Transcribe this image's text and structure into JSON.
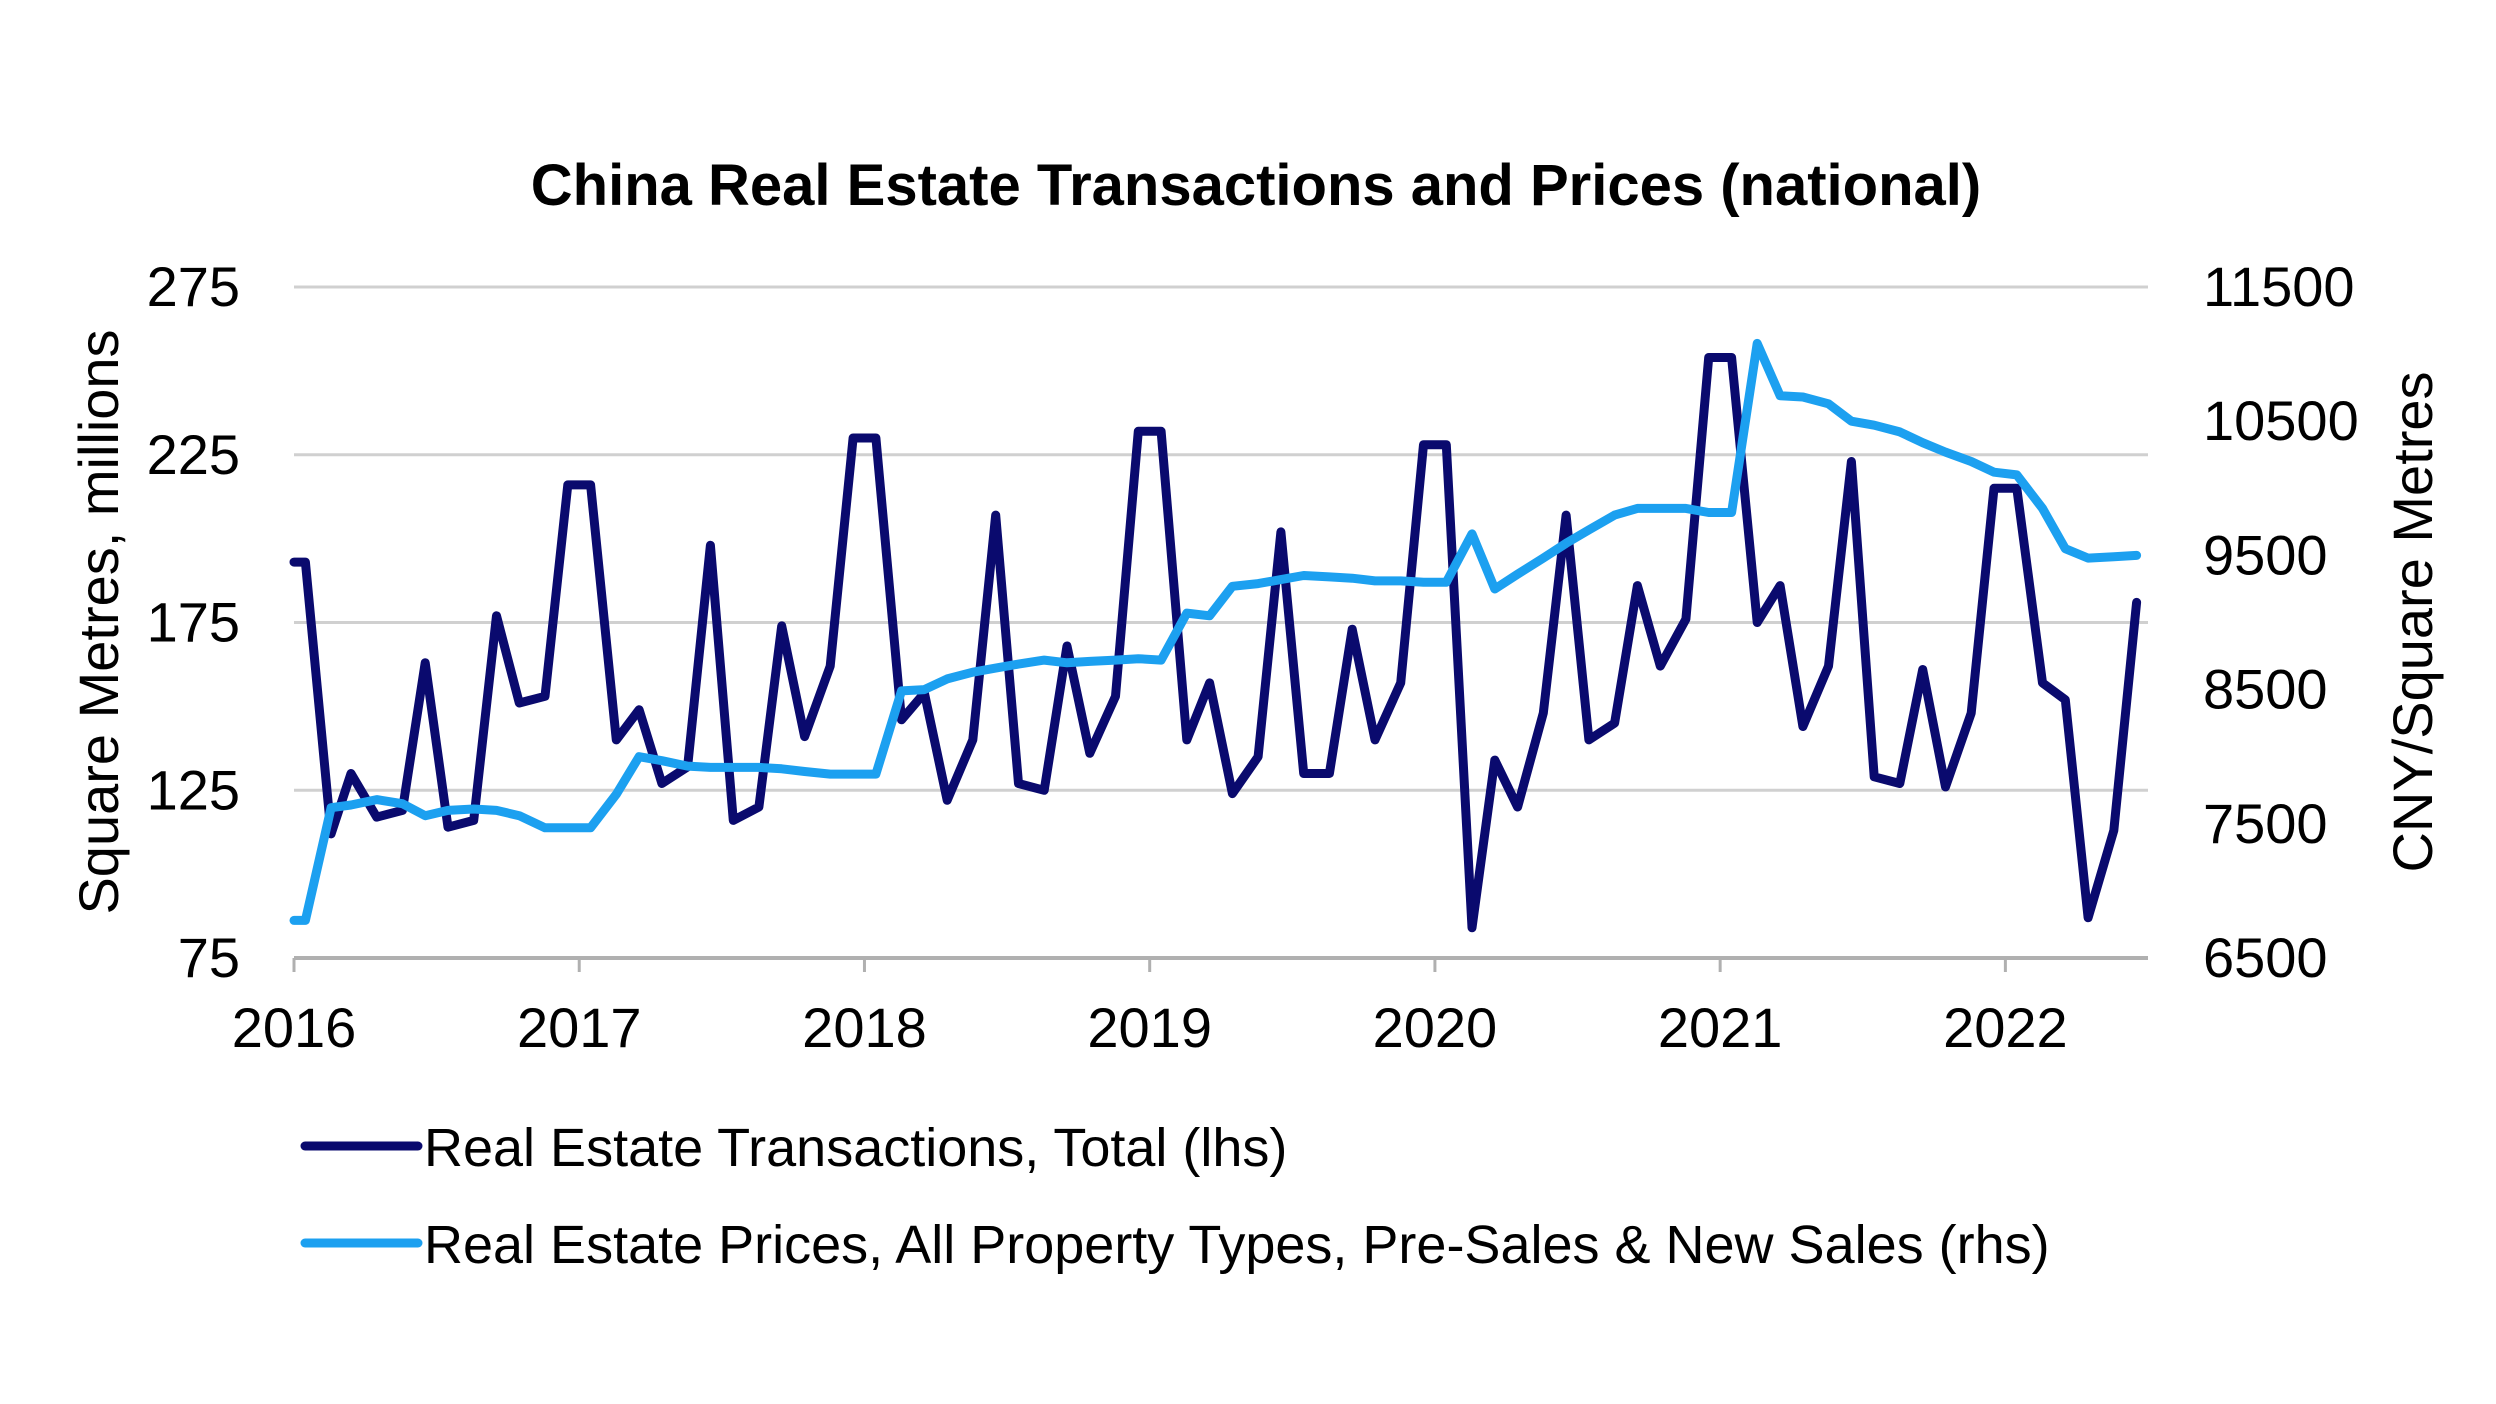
{
  "chart_data": {
    "type": "line",
    "title": "China Real Estate Transactions and Prices (national)",
    "left_axis": {
      "label": "Square Metres, millions",
      "ylim": [
        75,
        275
      ],
      "ticks": [
        "75",
        "125",
        "175",
        "225",
        "275"
      ]
    },
    "right_axis": {
      "label": "CNY/Square Metres",
      "ylim": [
        6500,
        11500
      ],
      "ticks": [
        "6500",
        "7500",
        "8500",
        "9500",
        "10500",
        "11500"
      ]
    },
    "x_axis": {
      "ticks": [
        "2016",
        "2017",
        "2018",
        "2019",
        "2020",
        "2021",
        "2022"
      ],
      "xlim": [
        2016.0,
        2022.5
      ]
    },
    "colors": {
      "transactions": "#0a0a6e",
      "prices": "#1ca0f0",
      "grid": "#d0d0d0",
      "axis": "#b0b0b0"
    },
    "series": [
      {
        "name": "Real Estate Transactions, Total (lhs)",
        "axis": "left",
        "color": "#0a0a6e",
        "x": [
          2016.0,
          2016.04,
          2016.13,
          2016.2,
          2016.29,
          2016.38,
          2016.46,
          2016.54,
          2016.63,
          2016.71,
          2016.79,
          2016.88,
          2016.96,
          2017.04,
          2017.13,
          2017.21,
          2017.29,
          2017.38,
          2017.46,
          2017.54,
          2017.63,
          2017.71,
          2017.79,
          2017.88,
          2017.96,
          2018.04,
          2018.13,
          2018.21,
          2018.29,
          2018.38,
          2018.46,
          2018.54,
          2018.63,
          2018.71,
          2018.79,
          2018.88,
          2018.96,
          2019.04,
          2019.13,
          2019.21,
          2019.29,
          2019.38,
          2019.46,
          2019.54,
          2019.63,
          2019.71,
          2019.79,
          2019.88,
          2019.96,
          2020.04,
          2020.13,
          2020.21,
          2020.29,
          2020.38,
          2020.46,
          2020.54,
          2020.63,
          2020.71,
          2020.79,
          2020.88,
          2020.96,
          2021.04,
          2021.13,
          2021.21,
          2021.29,
          2021.38,
          2021.46,
          2021.54,
          2021.63,
          2021.71,
          2021.79,
          2021.88,
          2021.96,
          2022.04,
          2022.13,
          2022.21,
          2022.29,
          2022.38,
          2022.46
        ],
        "values": [
          193,
          193,
          112,
          130,
          117,
          119,
          163,
          114,
          116,
          177,
          151,
          153,
          216,
          216,
          140,
          149,
          127,
          132,
          198,
          116,
          120,
          174,
          141,
          162,
          230,
          230,
          146,
          154,
          122,
          140,
          207,
          127,
          125,
          168,
          136,
          153,
          232,
          232,
          140,
          157,
          124,
          135,
          202,
          130,
          130,
          173,
          140,
          157,
          228,
          228,
          84,
          134,
          120,
          148,
          207,
          140,
          145,
          186,
          162,
          176,
          254,
          254,
          175,
          186,
          144,
          162,
          223,
          129,
          127,
          161,
          126,
          148,
          215,
          215,
          157,
          152,
          87,
          113,
          181
        ]
      },
      {
        "name": "Real Estate Prices, All Property Types, Pre-Sales & New Sales (rhs)",
        "axis": "right",
        "color": "#1ca0f0",
        "x": [
          2016.0,
          2016.04,
          2016.13,
          2016.2,
          2016.29,
          2016.38,
          2016.46,
          2016.54,
          2016.63,
          2016.71,
          2016.79,
          2016.88,
          2016.96,
          2017.04,
          2017.13,
          2017.21,
          2017.29,
          2017.38,
          2017.46,
          2017.54,
          2017.63,
          2017.71,
          2017.79,
          2017.88,
          2017.96,
          2018.04,
          2018.13,
          2018.21,
          2018.29,
          2018.38,
          2018.46,
          2018.54,
          2018.63,
          2018.71,
          2018.79,
          2018.88,
          2018.96,
          2019.04,
          2019.13,
          2019.21,
          2019.29,
          2019.38,
          2019.46,
          2019.54,
          2019.63,
          2019.71,
          2019.79,
          2019.88,
          2019.96,
          2020.04,
          2020.13,
          2020.21,
          2020.29,
          2020.38,
          2020.46,
          2020.54,
          2020.63,
          2020.71,
          2020.79,
          2020.88,
          2020.96,
          2021.04,
          2021.13,
          2021.21,
          2021.29,
          2021.38,
          2021.46,
          2021.54,
          2021.63,
          2021.71,
          2021.79,
          2021.88,
          2021.96,
          2022.04,
          2022.13,
          2022.21,
          2022.29,
          2022.38,
          2022.46
        ],
        "values": [
          6780,
          6780,
          7620,
          7640,
          7680,
          7650,
          7560,
          7600,
          7610,
          7600,
          7560,
          7470,
          7470,
          7470,
          7720,
          8000,
          7970,
          7930,
          7920,
          7920,
          7920,
          7910,
          7890,
          7870,
          7870,
          7870,
          8490,
          8500,
          8580,
          8630,
          8660,
          8690,
          8720,
          8700,
          8710,
          8720,
          8730,
          8720,
          9070,
          9050,
          9270,
          9290,
          9320,
          9350,
          9340,
          9330,
          9310,
          9310,
          9300,
          9300,
          9660,
          9250,
          9360,
          9480,
          9590,
          9690,
          9800,
          9850,
          9850,
          9850,
          9820,
          9820,
          11080,
          10690,
          10680,
          10630,
          10500,
          10470,
          10420,
          10340,
          10270,
          10200,
          10120,
          10100,
          9850,
          9550,
          9480,
          9490,
          9500
        ]
      }
    ],
    "legend": {
      "position": "bottom",
      "items": [
        "Real Estate Transactions, Total (lhs)",
        "Real Estate Prices, All Property Types, Pre-Sales & New Sales (rhs)"
      ]
    }
  }
}
